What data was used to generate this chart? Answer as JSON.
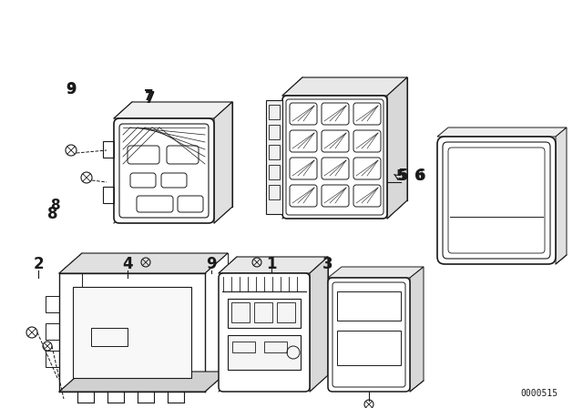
{
  "bg_color": "#ffffff",
  "line_color": "#1a1a1a",
  "figure_id": "0000515"
}
